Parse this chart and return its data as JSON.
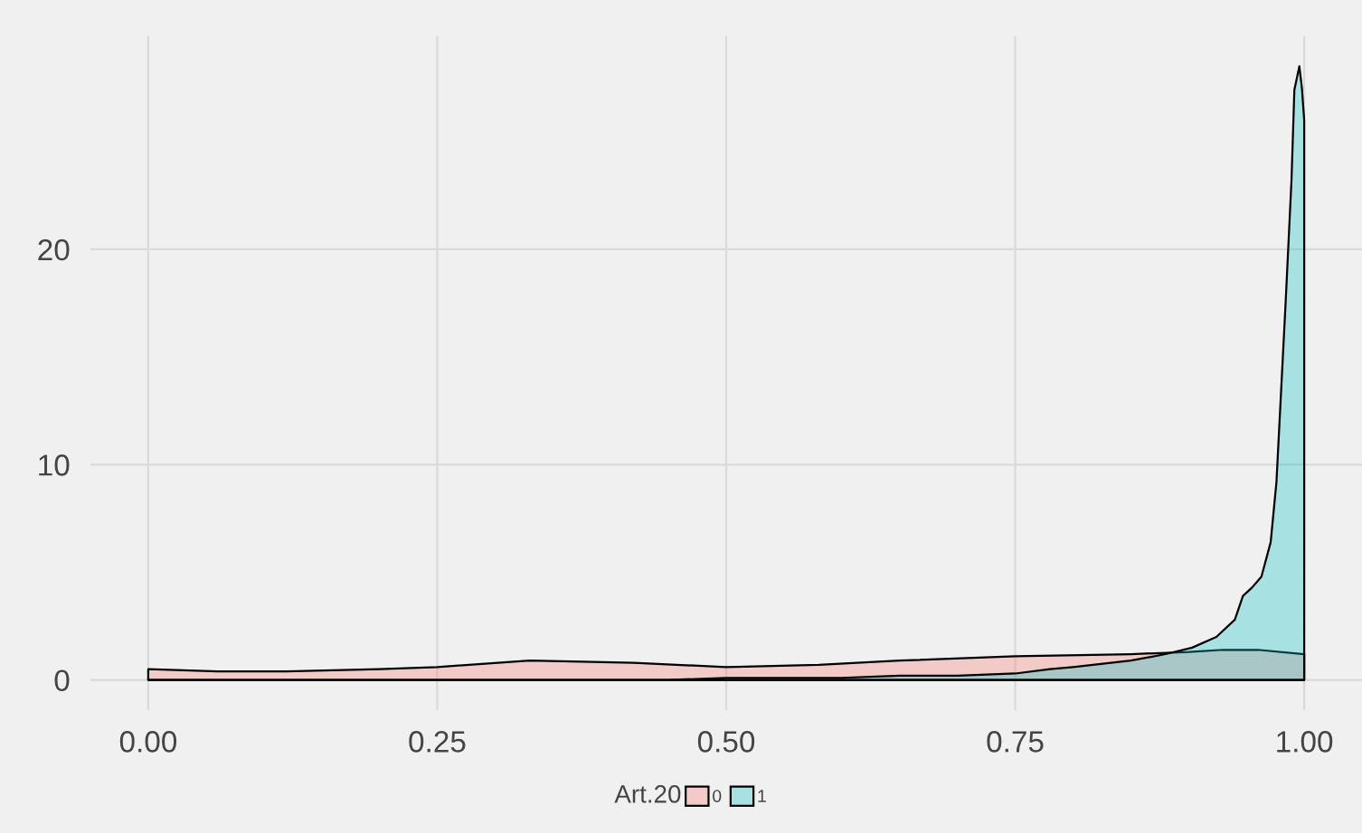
{
  "chart_data": {
    "type": "area",
    "legend_title": "Art.20",
    "legend": "bottom",
    "grid": true,
    "xlim": [
      -0.05,
      1.05
    ],
    "xticks": [
      {
        "value": 0,
        "label": "0.00"
      },
      {
        "value": 0.25,
        "label": "0.25"
      },
      {
        "value": 0.5,
        "label": "0.50"
      },
      {
        "value": 0.75,
        "label": "0.75"
      },
      {
        "value": 1,
        "label": "1.00"
      }
    ],
    "ylim": [
      -1.4,
      29.9
    ],
    "yticks": [
      0,
      10,
      20
    ],
    "series": [
      {
        "name": "0",
        "color": "#f8766d",
        "x": [
          0,
          0.06,
          0.12,
          0.2,
          0.25,
          0.33,
          0.42,
          0.5,
          0.58,
          0.65,
          0.75,
          0.85,
          0.9,
          0.93,
          0.96,
          1.0
        ],
        "values": [
          0.5,
          0.4,
          0.4,
          0.5,
          0.6,
          0.9,
          0.8,
          0.6,
          0.7,
          0.9,
          1.1,
          1.2,
          1.3,
          1.4,
          1.4,
          1.2
        ]
      },
      {
        "name": "1",
        "color": "#00bfc4",
        "x": [
          0,
          0.3,
          0.45,
          0.5,
          0.57,
          0.6,
          0.65,
          0.7,
          0.75,
          0.78,
          0.8,
          0.85,
          0.88,
          0.903,
          0.924,
          0.94,
          0.947,
          0.955,
          0.963,
          0.971,
          0.976,
          0.984,
          0.989,
          0.9915,
          0.9958,
          0.998,
          1.0
        ],
        "values": [
          0.0,
          0.0,
          0.0,
          0.1,
          0.1,
          0.1,
          0.2,
          0.2,
          0.3,
          0.5,
          0.6,
          0.9,
          1.2,
          1.5,
          2.0,
          2.8,
          3.9,
          4.3,
          4.8,
          6.4,
          9.2,
          17.6,
          23.2,
          27.4,
          28.5,
          27.5,
          26
        ]
      }
    ]
  }
}
